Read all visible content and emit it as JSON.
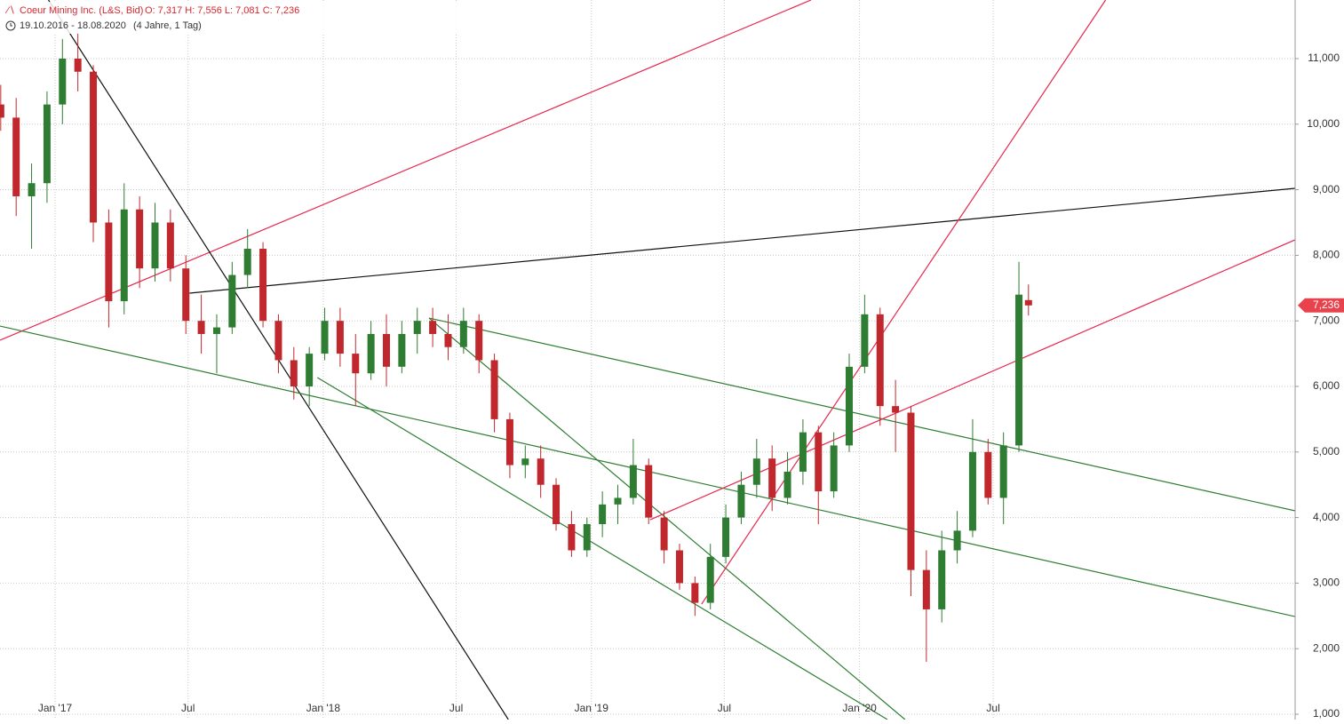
{
  "chart_data": {
    "type": "candlestick",
    "title": "Coeur Mining Inc. (L&S, Bid)",
    "quote": "O: 7,317  H: 7,556  L: 7,081  C: 7,236",
    "period": "19.10.2016 - 18.08.2020",
    "span": "(4 Jahre, 1 Tag)",
    "up_color": "#2e7d32",
    "down_color": "#c0282d",
    "grid": true,
    "xlim": [
      "2016-10-18",
      "2021-08-16"
    ],
    "ylim": [
      919,
      11894
    ],
    "xticks": [
      {
        "value": "2017-01-01",
        "label": "Jan '17"
      },
      {
        "value": "2017-07-01",
        "label": "Jul"
      },
      {
        "value": "2018-01-01",
        "label": "Jan '18"
      },
      {
        "value": "2018-07-01",
        "label": "Jul"
      },
      {
        "value": "2019-01-01",
        "label": "Jan '19"
      },
      {
        "value": "2019-07-01",
        "label": "Jul"
      },
      {
        "value": "2020-01-01",
        "label": "Jan '20"
      },
      {
        "value": "2020-07-01",
        "label": "Jul"
      }
    ],
    "yticks": [
      {
        "value": 1000,
        "label": "1,000"
      },
      {
        "value": 2000,
        "label": "2,000"
      },
      {
        "value": 3000,
        "label": "3,000"
      },
      {
        "value": 4000,
        "label": "4,000"
      },
      {
        "value": 5000,
        "label": "5,000"
      },
      {
        "value": 6000,
        "label": "6,000"
      },
      {
        "value": 7000,
        "label": "7,000"
      },
      {
        "value": 8000,
        "label": "8,000"
      },
      {
        "value": 9000,
        "label": "9,000"
      },
      {
        "value": 10000,
        "label": "10,000"
      },
      {
        "value": 11000,
        "label": "11,000"
      }
    ],
    "last_price": {
      "value": 7236,
      "label": "7,236",
      "color": "#e8434c"
    },
    "x": [
      "2016-10-19",
      "2016-11-09",
      "2016-11-30",
      "2016-12-21",
      "2017-01-11",
      "2017-02-01",
      "2017-02-22",
      "2017-03-15",
      "2017-04-05",
      "2017-04-26",
      "2017-05-17",
      "2017-06-07",
      "2017-06-28",
      "2017-07-19",
      "2017-08-09",
      "2017-08-30",
      "2017-09-20",
      "2017-10-11",
      "2017-11-01",
      "2017-11-22",
      "2017-12-13",
      "2018-01-03",
      "2018-01-24",
      "2018-02-14",
      "2018-03-07",
      "2018-03-28",
      "2018-04-18",
      "2018-05-09",
      "2018-05-30",
      "2018-06-20",
      "2018-07-11",
      "2018-08-01",
      "2018-08-22",
      "2018-09-12",
      "2018-10-03",
      "2018-10-24",
      "2018-11-14",
      "2018-12-05",
      "2018-12-26",
      "2019-01-16",
      "2019-02-06",
      "2019-02-27",
      "2019-03-20",
      "2019-04-10",
      "2019-05-01",
      "2019-05-22",
      "2019-06-12",
      "2019-07-03",
      "2019-07-24",
      "2019-08-14",
      "2019-09-04",
      "2019-09-25",
      "2019-10-16",
      "2019-11-06",
      "2019-11-27",
      "2019-12-18",
      "2020-01-08",
      "2020-01-29",
      "2020-02-19",
      "2020-03-11",
      "2020-04-01",
      "2020-04-22",
      "2020-05-13",
      "2020-06-03",
      "2020-06-24",
      "2020-07-15",
      "2020-08-05",
      "2020-08-18"
    ],
    "ohlc": [
      [
        10300,
        10600,
        9900,
        10100
      ],
      [
        10100,
        10400,
        8600,
        8900
      ],
      [
        8900,
        9400,
        8100,
        9100
      ],
      [
        9100,
        10500,
        8800,
        10300
      ],
      [
        10300,
        11300,
        10000,
        11000
      ],
      [
        11000,
        11400,
        10500,
        10800
      ],
      [
        10800,
        10900,
        8200,
        8500
      ],
      [
        8500,
        8700,
        6900,
        7300
      ],
      [
        7300,
        9100,
        7100,
        8700
      ],
      [
        8700,
        8900,
        7500,
        7800
      ],
      [
        7800,
        8800,
        7600,
        8500
      ],
      [
        8500,
        8700,
        7600,
        7800
      ],
      [
        7800,
        8000,
        6800,
        7000
      ],
      [
        7000,
        7400,
        6500,
        6800
      ],
      [
        6800,
        7100,
        6200,
        6900
      ],
      [
        6900,
        7900,
        6800,
        7700
      ],
      [
        7700,
        8400,
        7500,
        8100
      ],
      [
        8100,
        8200,
        6900,
        7000
      ],
      [
        7000,
        7100,
        6200,
        6400
      ],
      [
        6400,
        6600,
        5800,
        6000
      ],
      [
        6000,
        6600,
        5700,
        6500
      ],
      [
        6500,
        7200,
        6400,
        7000
      ],
      [
        7000,
        7200,
        6300,
        6500
      ],
      [
        6500,
        6800,
        5700,
        6200
      ],
      [
        6200,
        7000,
        6100,
        6800
      ],
      [
        6800,
        7100,
        6000,
        6300
      ],
      [
        6300,
        7000,
        6200,
        6800
      ],
      [
        6800,
        7200,
        6500,
        7000
      ],
      [
        7000,
        7200,
        6600,
        6800
      ],
      [
        6800,
        7100,
        6400,
        6600
      ],
      [
        6600,
        7200,
        6500,
        7000
      ],
      [
        7000,
        7100,
        6200,
        6400
      ],
      [
        6400,
        6500,
        5300,
        5500
      ],
      [
        5500,
        5600,
        4600,
        4800
      ],
      [
        4800,
        5100,
        4600,
        4900
      ],
      [
        4900,
        5100,
        4300,
        4500
      ],
      [
        4500,
        4600,
        3800,
        3900
      ],
      [
        3900,
        4100,
        3400,
        3500
      ],
      [
        3500,
        4000,
        3400,
        3900
      ],
      [
        3900,
        4400,
        3700,
        4200
      ],
      [
        4200,
        4500,
        3900,
        4300
      ],
      [
        4300,
        5200,
        4200,
        4800
      ],
      [
        4800,
        4900,
        3900,
        4000
      ],
      [
        4000,
        4100,
        3300,
        3500
      ],
      [
        3500,
        3600,
        2900,
        3000
      ],
      [
        3000,
        3100,
        2500,
        2700
      ],
      [
        2700,
        3600,
        2600,
        3400
      ],
      [
        3400,
        4200,
        3300,
        4000
      ],
      [
        4000,
        4700,
        3900,
        4500
      ],
      [
        4500,
        5200,
        4300,
        4900
      ],
      [
        4900,
        5100,
        4100,
        4300
      ],
      [
        4300,
        5000,
        4200,
        4700
      ],
      [
        4700,
        5500,
        4500,
        5300
      ],
      [
        5300,
        5400,
        3900,
        4400
      ],
      [
        4400,
        5300,
        4300,
        5100
      ],
      [
        5100,
        6500,
        5000,
        6300
      ],
      [
        6300,
        7400,
        6200,
        7100
      ],
      [
        7100,
        7200,
        5400,
        5700
      ],
      [
        5700,
        6100,
        5000,
        5600
      ],
      [
        5600,
        5700,
        2800,
        3200
      ],
      [
        3200,
        3500,
        1800,
        2600
      ],
      [
        2600,
        3800,
        2400,
        3500
      ],
      [
        3500,
        4100,
        3300,
        3800
      ],
      [
        3800,
        5500,
        3700,
        5000
      ],
      [
        5000,
        5200,
        4200,
        4300
      ],
      [
        4300,
        5300,
        3900,
        5100
      ],
      [
        5100,
        7900,
        5000,
        7400
      ],
      [
        7317,
        7556,
        7081,
        7236
      ]
    ],
    "trend_lines": [
      {
        "color": "#e8264d",
        "points": [
          [
            "2016-10-18",
            6705
          ],
          [
            "2019-10-27",
            11894
          ]
        ]
      },
      {
        "color": "#111111",
        "points": [
          [
            "2016-12-23",
            11894
          ],
          [
            "2018-09-10",
            919
          ]
        ]
      },
      {
        "color": "#111111",
        "points": [
          [
            "2017-07-03",
            7423
          ],
          [
            "2021-08-16",
            9022
          ]
        ]
      },
      {
        "color": "#2e7d32",
        "points": [
          [
            "2016-10-18",
            6921
          ],
          [
            "2021-08-16",
            2490
          ]
        ]
      },
      {
        "color": "#2e7d32",
        "points": [
          [
            "2018-05-25",
            7043
          ],
          [
            "2021-08-16",
            4103
          ]
        ]
      },
      {
        "color": "#2e7d32",
        "points": [
          [
            "2018-05-25",
            7043
          ],
          [
            "2020-03-03",
            919
          ]
        ]
      },
      {
        "color": "#2e7d32",
        "points": [
          [
            "2017-12-24",
            6136
          ],
          [
            "2020-02-08",
            919
          ]
        ]
      },
      {
        "color": "#e8264d",
        "points": [
          [
            "2019-05-31",
            2680
          ],
          [
            "2020-12-01",
            11894
          ]
        ]
      },
      {
        "color": "#e8264d",
        "points": [
          [
            "2019-03-22",
            3967
          ],
          [
            "2021-08-16",
            8236
          ]
        ]
      }
    ]
  }
}
